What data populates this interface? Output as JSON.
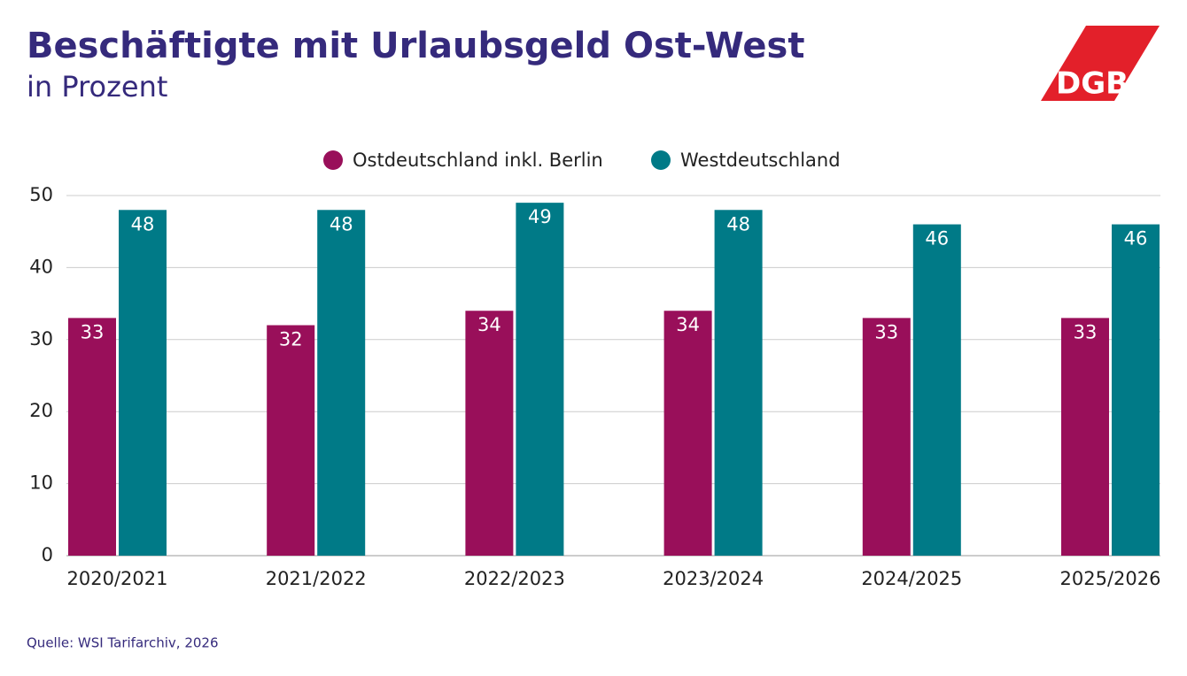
{
  "logo": "DGB",
  "chart_data": {
    "type": "bar",
    "title": "Beschäftigte mit Urlaubsgeld Ost-West",
    "subtitle": "in Prozent",
    "source": "Quelle: WSI Tarifarchiv, 2026",
    "categories": [
      "2020/2021",
      "2021/2022",
      "2022/2023",
      "2023/2024",
      "2024/2025",
      "2025/2026"
    ],
    "series": [
      {
        "name": "Ostdeutschland inkl. Berlin",
        "color": "#990f5a",
        "values": [
          33,
          32,
          34,
          34,
          33,
          33
        ]
      },
      {
        "name": "Westdeutschland",
        "color": "#007a87",
        "values": [
          48,
          48,
          49,
          48,
          46,
          46
        ]
      }
    ],
    "ylim": [
      0,
      50
    ],
    "yticks": [
      0,
      10,
      20,
      30,
      40,
      50
    ],
    "grid": true,
    "legend": "top"
  }
}
